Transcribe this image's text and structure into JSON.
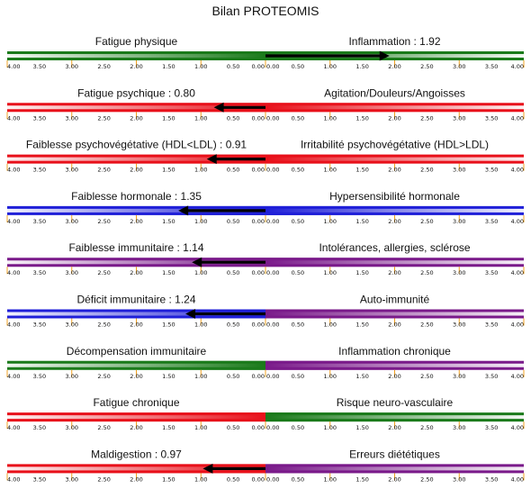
{
  "title": "Bilan PROTEOMIS",
  "chart_data": {
    "type": "bar",
    "title": "Bilan PROTEOMIS",
    "axis": {
      "left_range": [
        4,
        0
      ],
      "right_range": [
        0,
        4
      ],
      "tick_labels_left": [
        "4.00",
        "3.50",
        "3.00",
        "2.50",
        "2.00",
        "1.50",
        "1.00",
        "0.50",
        "0.00"
      ],
      "tick_labels_right": [
        "0.00",
        "0.50",
        "1.00",
        "1.50",
        "2.00",
        "2.50",
        "3.00",
        "3.50",
        "4.00"
      ]
    },
    "rows": [
      {
        "left_label": "Fatigue physique",
        "right_label": "Inflammation",
        "value": 1.92,
        "value_label": "1.92",
        "direction": "right",
        "left_color": "#1a7a1a",
        "right_color": "#1a7a1a"
      },
      {
        "left_label": "Fatigue psychique",
        "right_label": "Agitation/Douleurs/Angoisses",
        "value": 0.8,
        "value_label": "0.80",
        "direction": "left",
        "left_color": "#e8101a",
        "right_color": "#e8101a"
      },
      {
        "left_label": "Faiblesse psychovégétative (HDL<LDL)",
        "right_label": "Irritabilité psychovégétative (HDL>LDL)",
        "value": 0.91,
        "value_label": "0.91",
        "direction": "left",
        "left_color": "#e8101a",
        "right_color": "#e8101a"
      },
      {
        "left_label": "Faiblesse hormonale",
        "right_label": "Hypersensibilité hormonale",
        "value": 1.35,
        "value_label": "1.35",
        "direction": "left",
        "left_color": "#1f1fd8",
        "right_color": "#1f1fd8"
      },
      {
        "left_label": "Faiblesse immunitaire",
        "right_label": "Intolérances, allergies, sclérose",
        "value": 1.14,
        "value_label": "1.14",
        "direction": "left",
        "left_color": "#7a1a8a",
        "right_color": "#7a1a8a"
      },
      {
        "left_label": "Déficit immunitaire",
        "right_label": "Auto-immunité",
        "value": 1.24,
        "value_label": "1.24",
        "direction": "left",
        "left_color": "#1f1fd8",
        "right_color": "#7a1a8a"
      },
      {
        "left_label": "Décompensation immunitaire",
        "right_label": "Inflammation chronique",
        "value": null,
        "value_label": "",
        "direction": "none",
        "left_color": "#1a7a1a",
        "right_color": "#7a1a8a"
      },
      {
        "left_label": "Fatigue chronique",
        "right_label": "Risque neuro-vasculaire",
        "value": null,
        "value_label": "",
        "direction": "none",
        "left_color": "#e8101a",
        "right_color": "#1a7a1a"
      },
      {
        "left_label": "Maldigestion",
        "right_label": "Erreurs diététiques",
        "value": 0.97,
        "value_label": "0.97",
        "direction": "left",
        "left_color": "#e8101a",
        "right_color": "#7a1a8a"
      }
    ]
  }
}
